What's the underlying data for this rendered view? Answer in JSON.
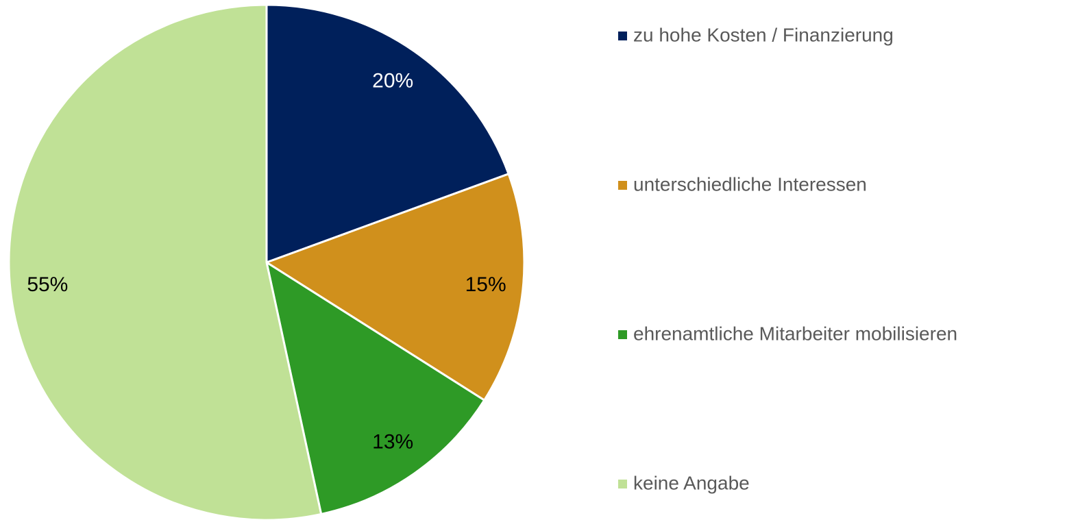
{
  "chart_data": {
    "type": "pie",
    "categories": [
      "zu hohe Kosten / Finanzierung",
      "unterschiedliche Interessen",
      "ehrenamtliche Mitarbeiter mobilisieren",
      "keine Angabe"
    ],
    "values": [
      20,
      15,
      13,
      55
    ],
    "value_labels": [
      "20%",
      "15%",
      "13%",
      "55%"
    ],
    "colors": [
      "#00205b",
      "#d0901c",
      "#2e9a26",
      "#c0e196"
    ],
    "label_colors": [
      "#ffffff",
      "#000000",
      "#000000",
      "#000000"
    ],
    "legend": "right"
  }
}
